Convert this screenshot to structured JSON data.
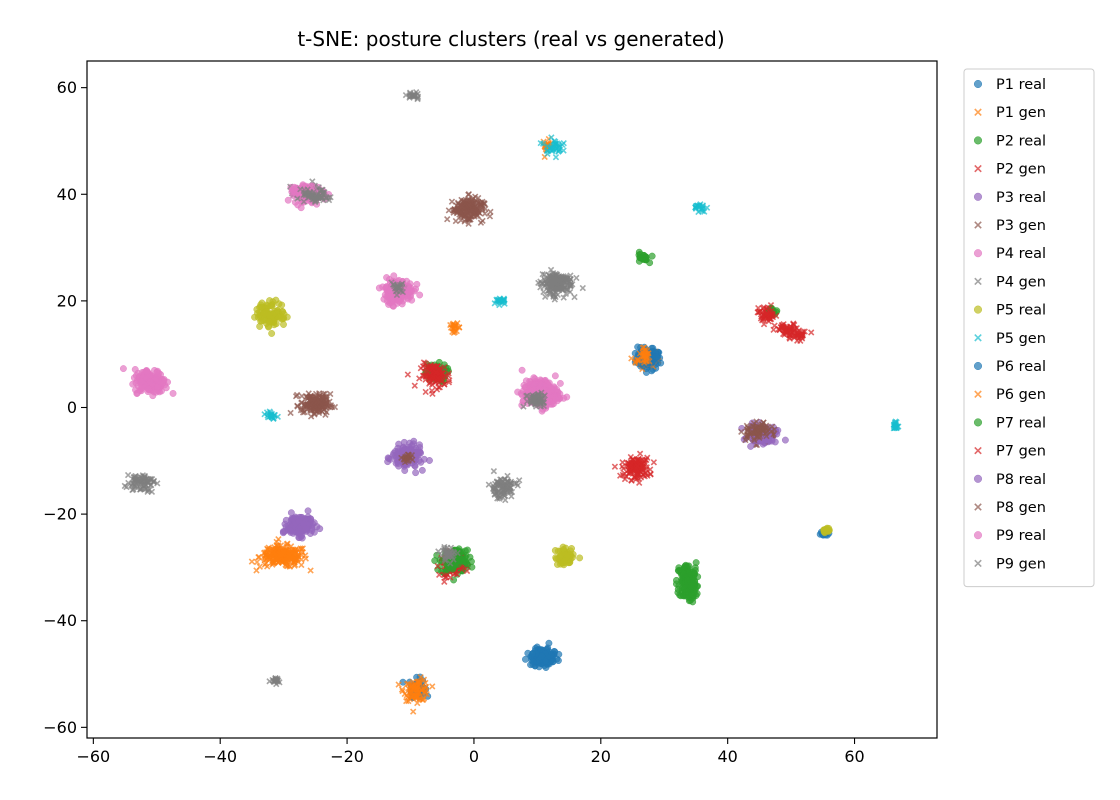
{
  "chart_data": {
    "type": "scatter",
    "title": "t-SNE: posture clusters (real vs generated)",
    "xlabel": "",
    "ylabel": "",
    "xlim": [
      -61,
      73
    ],
    "ylim": [
      -62,
      65
    ],
    "xticks": [
      -60,
      -40,
      -20,
      0,
      20,
      40,
      60
    ],
    "yticks": [
      -60,
      -40,
      -20,
      0,
      20,
      40,
      60
    ],
    "xtick_labels": [
      "−60",
      "−40",
      "−20",
      "0",
      "20",
      "40",
      "60"
    ],
    "ytick_labels": [
      "−60",
      "−40",
      "−20",
      "0",
      "20",
      "40",
      "60"
    ],
    "grid": false,
    "legend": {
      "placement": "outside-right"
    },
    "series": [
      {
        "name": "P1 real",
        "marker": "circle",
        "color": "#1f77b4",
        "clusters": [
          {
            "x": 27.5,
            "y": 9,
            "rx": 2.4,
            "ry": 2.2
          },
          {
            "x": 11,
            "y": -47,
            "rx": 2.6,
            "ry": 2.0
          },
          {
            "x": 55.5,
            "y": -23.5,
            "rx": 1.0,
            "ry": 0.8
          },
          {
            "x": -9,
            "y": -52.5,
            "rx": 1.5,
            "ry": 2.0
          }
        ]
      },
      {
        "name": "P1 gen",
        "marker": "x",
        "color": "#ff7f0e",
        "clusters": [
          {
            "x": 27,
            "y": 9,
            "rx": 1.8,
            "ry": 2.0
          },
          {
            "x": 11.5,
            "y": 49,
            "rx": 0.8,
            "ry": 1.4
          },
          {
            "x": -3,
            "y": 15,
            "rx": 1.0,
            "ry": 0.9
          },
          {
            "x": -30,
            "y": -28,
            "rx": 4.5,
            "ry": 2.4
          },
          {
            "x": -9,
            "y": -53,
            "rx": 2.4,
            "ry": 2.4
          }
        ]
      },
      {
        "name": "P2 real",
        "marker": "circle",
        "color": "#2ca02c",
        "clusters": [
          {
            "x": 26.5,
            "y": 28,
            "rx": 1.2,
            "ry": 1.2
          },
          {
            "x": 33.5,
            "y": -32.5,
            "rx": 1.8,
            "ry": 4.0
          },
          {
            "x": -3,
            "y": -29,
            "rx": 2.6,
            "ry": 2.8
          },
          {
            "x": -6,
            "y": 6.5,
            "rx": 2.0,
            "ry": 2.0
          }
        ]
      },
      {
        "name": "P2 gen",
        "marker": "x",
        "color": "#d62728",
        "clusters": [
          {
            "x": 46,
            "y": 17.5,
            "rx": 1.4,
            "ry": 2.0
          },
          {
            "x": 49.5,
            "y": 14.5,
            "rx": 2.4,
            "ry": 1.4
          },
          {
            "x": 25.5,
            "y": -11.5,
            "rx": 2.6,
            "ry": 2.4
          },
          {
            "x": -6,
            "y": 6,
            "rx": 2.8,
            "ry": 2.6
          },
          {
            "x": -3.5,
            "y": -29.5,
            "rx": 2.2,
            "ry": 2.6
          }
        ]
      },
      {
        "name": "P3 real",
        "marker": "circle",
        "color": "#9467bd",
        "clusters": [
          {
            "x": -27.5,
            "y": -22,
            "rx": 2.8,
            "ry": 2.4
          },
          {
            "x": -10.5,
            "y": -9.5,
            "rx": 2.8,
            "ry": 2.6
          },
          {
            "x": 45.5,
            "y": -5,
            "rx": 2.6,
            "ry": 2.0
          }
        ]
      },
      {
        "name": "P3 gen",
        "marker": "x",
        "color": "#8c564b",
        "clusters": [
          {
            "x": -1,
            "y": 37,
            "rx": 3.0,
            "ry": 2.6
          },
          {
            "x": -25,
            "y": 0.5,
            "rx": 2.8,
            "ry": 2.4
          },
          {
            "x": 45,
            "y": -5,
            "rx": 2.6,
            "ry": 2.0
          }
        ]
      },
      {
        "name": "P4 real",
        "marker": "circle",
        "color": "#e377c2",
        "clusters": [
          {
            "x": -51,
            "y": 5,
            "rx": 3.0,
            "ry": 2.6
          },
          {
            "x": -12,
            "y": 22,
            "rx": 3.0,
            "ry": 2.6
          },
          {
            "x": -26,
            "y": 40,
            "rx": 2.8,
            "ry": 2.0
          },
          {
            "x": 10.5,
            "y": 2.5,
            "rx": 3.5,
            "ry": 3.0
          }
        ]
      },
      {
        "name": "P4 gen",
        "marker": "x",
        "color": "#7f7f7f",
        "clusters": [
          {
            "x": 13,
            "y": 23.5,
            "rx": 3.0,
            "ry": 2.6
          },
          {
            "x": -26,
            "y": 40,
            "rx": 3.4,
            "ry": 1.6
          },
          {
            "x": -12,
            "y": 22.5,
            "rx": 1.2,
            "ry": 1.2
          }
        ]
      },
      {
        "name": "P5 real",
        "marker": "circle",
        "color": "#bcbd22",
        "clusters": [
          {
            "x": -32,
            "y": 17.5,
            "rx": 2.8,
            "ry": 2.8
          },
          {
            "x": 14.5,
            "y": -28,
            "rx": 2.0,
            "ry": 2.0
          },
          {
            "x": 55.5,
            "y": -23,
            "rx": 0.6,
            "ry": 0.6
          }
        ]
      },
      {
        "name": "P5 gen",
        "marker": "x",
        "color": "#17becf",
        "clusters": [
          {
            "x": 12.5,
            "y": 49,
            "rx": 1.6,
            "ry": 1.6
          },
          {
            "x": 35.5,
            "y": 37.5,
            "rx": 1.2,
            "ry": 1.0
          },
          {
            "x": 4,
            "y": 20,
            "rx": 1.2,
            "ry": 1.0
          },
          {
            "x": -32,
            "y": -1.5,
            "rx": 1.0,
            "ry": 1.0
          },
          {
            "x": 66.5,
            "y": -3.5,
            "rx": 0.4,
            "ry": 1.0
          },
          {
            "x": 10,
            "y": 3.5,
            "rx": 1.0,
            "ry": 1.0
          }
        ]
      },
      {
        "name": "P6 real",
        "marker": "circle",
        "color": "#1f77b4",
        "clusters": [
          {
            "x": 27.5,
            "y": 9.5,
            "rx": 2.0,
            "ry": 2.0
          },
          {
            "x": 11,
            "y": -46.5,
            "rx": 2.4,
            "ry": 2.0
          }
        ]
      },
      {
        "name": "P6 gen",
        "marker": "x",
        "color": "#ff7f0e",
        "clusters": [
          {
            "x": 27,
            "y": 9.5,
            "rx": 1.4,
            "ry": 1.6
          },
          {
            "x": -30.5,
            "y": -28,
            "rx": 3.5,
            "ry": 2.0
          }
        ]
      },
      {
        "name": "P7 real",
        "marker": "circle",
        "color": "#2ca02c",
        "clusters": [
          {
            "x": 34,
            "y": -33,
            "rx": 1.6,
            "ry": 3.6
          },
          {
            "x": 47,
            "y": 18,
            "rx": 0.6,
            "ry": 0.6
          },
          {
            "x": -3,
            "y": -28.5,
            "rx": 2.0,
            "ry": 2.0
          }
        ]
      },
      {
        "name": "P7 gen",
        "marker": "x",
        "color": "#d62728",
        "clusters": [
          {
            "x": 46.5,
            "y": 17.5,
            "rx": 1.2,
            "ry": 1.6
          },
          {
            "x": 51,
            "y": 13.5,
            "rx": 2.2,
            "ry": 1.0
          },
          {
            "x": 25.5,
            "y": -11,
            "rx": 2.0,
            "ry": 2.0
          }
        ]
      },
      {
        "name": "P8 real",
        "marker": "circle",
        "color": "#9467bd",
        "clusters": [
          {
            "x": -10.5,
            "y": -9,
            "rx": 2.2,
            "ry": 2.2
          },
          {
            "x": 45.5,
            "y": -5.5,
            "rx": 2.0,
            "ry": 1.6
          },
          {
            "x": -27.5,
            "y": -22.5,
            "rx": 2.2,
            "ry": 2.0
          }
        ]
      },
      {
        "name": "P8 gen",
        "marker": "x",
        "color": "#8c564b",
        "clusters": [
          {
            "x": -1,
            "y": 37.5,
            "rx": 2.6,
            "ry": 2.2
          },
          {
            "x": -25,
            "y": 1,
            "rx": 2.4,
            "ry": 2.0
          },
          {
            "x": -10.5,
            "y": -9.5,
            "rx": 1.0,
            "ry": 1.0
          },
          {
            "x": 45,
            "y": -4.5,
            "rx": 2.2,
            "ry": 1.8
          }
        ]
      },
      {
        "name": "P9 real",
        "marker": "circle",
        "color": "#e377c2",
        "clusters": [
          {
            "x": -51,
            "y": 5,
            "rx": 2.6,
            "ry": 2.2
          },
          {
            "x": -12,
            "y": 21.5,
            "rx": 2.6,
            "ry": 2.2
          },
          {
            "x": 10.5,
            "y": 3,
            "rx": 3.0,
            "ry": 2.6
          },
          {
            "x": -27,
            "y": 40.5,
            "rx": 2.2,
            "ry": 1.6
          }
        ]
      },
      {
        "name": "P9 gen",
        "marker": "x",
        "color": "#7f7f7f",
        "clusters": [
          {
            "x": -9.5,
            "y": 58.5,
            "rx": 1.2,
            "ry": 0.8
          },
          {
            "x": -52.5,
            "y": -14,
            "rx": 2.6,
            "ry": 2.0
          },
          {
            "x": 4.5,
            "y": -15,
            "rx": 2.6,
            "ry": 2.4
          },
          {
            "x": -31.5,
            "y": -51.3,
            "rx": 1.0,
            "ry": 0.6
          },
          {
            "x": -25.5,
            "y": 39.5,
            "rx": 3.0,
            "ry": 1.2
          },
          {
            "x": 13,
            "y": 23,
            "rx": 2.6,
            "ry": 2.2
          },
          {
            "x": -12,
            "y": 22.5,
            "rx": 1.0,
            "ry": 1.0
          },
          {
            "x": -4,
            "y": -27.5,
            "rx": 1.6,
            "ry": 1.6
          },
          {
            "x": 10,
            "y": 1.5,
            "rx": 2.2,
            "ry": 1.8
          }
        ]
      }
    ]
  }
}
